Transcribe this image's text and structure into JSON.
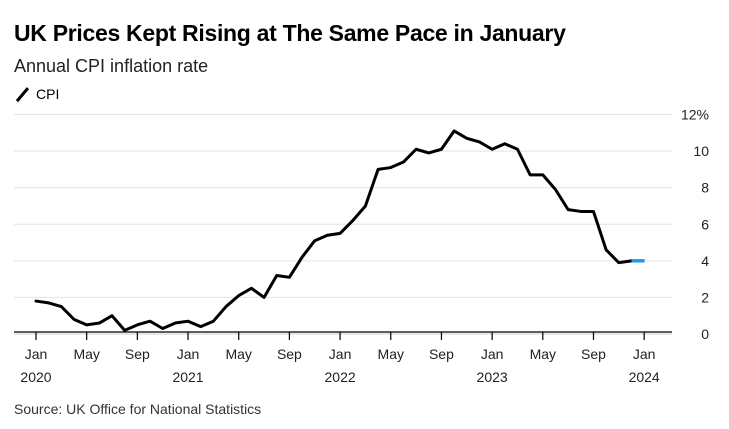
{
  "title": "UK Prices Kept Rising at The Same Pace in January",
  "subtitle": "Annual CPI inflation rate",
  "legend": {
    "label": "CPI"
  },
  "source": "Source: UK Office for National Statistics",
  "colors": {
    "line": "#000000",
    "highlight": "#1a9be8",
    "grid": "#e3e3e3",
    "axis": "#000000"
  },
  "chart_data": {
    "type": "line",
    "title": "UK Prices Kept Rising at The Same Pace in January",
    "subtitle": "Annual CPI inflation rate",
    "ylabel": "",
    "xlabel": "",
    "ylim": [
      0,
      12
    ],
    "xlim": [
      "2019-12",
      "2024-06"
    ],
    "y_ticks": [
      {
        "value": 0,
        "label": "0"
      },
      {
        "value": 2,
        "label": "2"
      },
      {
        "value": 4,
        "label": "4"
      },
      {
        "value": 6,
        "label": "6"
      },
      {
        "value": 8,
        "label": "8"
      },
      {
        "value": 10,
        "label": "10"
      },
      {
        "value": 12,
        "label": "12%"
      }
    ],
    "x_ticks": [
      {
        "date": "2020-01",
        "label": "Jan",
        "year": "2020"
      },
      {
        "date": "2020-05",
        "label": "May",
        "year": ""
      },
      {
        "date": "2020-09",
        "label": "Sep",
        "year": ""
      },
      {
        "date": "2021-01",
        "label": "Jan",
        "year": "2021"
      },
      {
        "date": "2021-05",
        "label": "May",
        "year": ""
      },
      {
        "date": "2021-09",
        "label": "Sep",
        "year": ""
      },
      {
        "date": "2022-01",
        "label": "Jan",
        "year": "2022"
      },
      {
        "date": "2022-05",
        "label": "May",
        "year": ""
      },
      {
        "date": "2022-09",
        "label": "Sep",
        "year": ""
      },
      {
        "date": "2023-01",
        "label": "Jan",
        "year": "2023"
      },
      {
        "date": "2023-05",
        "label": "May",
        "year": ""
      },
      {
        "date": "2023-09",
        "label": "Sep",
        "year": ""
      },
      {
        "date": "2024-01",
        "label": "Jan",
        "year": "2024"
      }
    ],
    "grid": true,
    "series": [
      {
        "name": "CPI",
        "color": "#000000",
        "highlight_last": true,
        "highlight_color": "#1a9be8",
        "points": [
          [
            "2020-01",
            1.8
          ],
          [
            "2020-02",
            1.7
          ],
          [
            "2020-03",
            1.5
          ],
          [
            "2020-04",
            0.8
          ],
          [
            "2020-05",
            0.5
          ],
          [
            "2020-06",
            0.6
          ],
          [
            "2020-07",
            1.0
          ],
          [
            "2020-08",
            0.2
          ],
          [
            "2020-09",
            0.5
          ],
          [
            "2020-10",
            0.7
          ],
          [
            "2020-11",
            0.3
          ],
          [
            "2020-12",
            0.6
          ],
          [
            "2021-01",
            0.7
          ],
          [
            "2021-02",
            0.4
          ],
          [
            "2021-03",
            0.7
          ],
          [
            "2021-04",
            1.5
          ],
          [
            "2021-05",
            2.1
          ],
          [
            "2021-06",
            2.5
          ],
          [
            "2021-07",
            2.0
          ],
          [
            "2021-08",
            3.2
          ],
          [
            "2021-09",
            3.1
          ],
          [
            "2021-10",
            4.2
          ],
          [
            "2021-11",
            5.1
          ],
          [
            "2021-12",
            5.4
          ],
          [
            "2022-01",
            5.5
          ],
          [
            "2022-02",
            6.2
          ],
          [
            "2022-03",
            7.0
          ],
          [
            "2022-04",
            9.0
          ],
          [
            "2022-05",
            9.1
          ],
          [
            "2022-06",
            9.4
          ],
          [
            "2022-07",
            10.1
          ],
          [
            "2022-08",
            9.9
          ],
          [
            "2022-09",
            10.1
          ],
          [
            "2022-10",
            11.1
          ],
          [
            "2022-11",
            10.7
          ],
          [
            "2022-12",
            10.5
          ],
          [
            "2023-01",
            10.1
          ],
          [
            "2023-02",
            10.4
          ],
          [
            "2023-03",
            10.1
          ],
          [
            "2023-04",
            8.7
          ],
          [
            "2023-05",
            8.7
          ],
          [
            "2023-06",
            7.9
          ],
          [
            "2023-07",
            6.8
          ],
          [
            "2023-08",
            6.7
          ],
          [
            "2023-09",
            6.7
          ],
          [
            "2023-10",
            4.6
          ],
          [
            "2023-11",
            3.9
          ],
          [
            "2023-12",
            4.0
          ],
          [
            "2024-01",
            4.0
          ]
        ]
      }
    ]
  }
}
